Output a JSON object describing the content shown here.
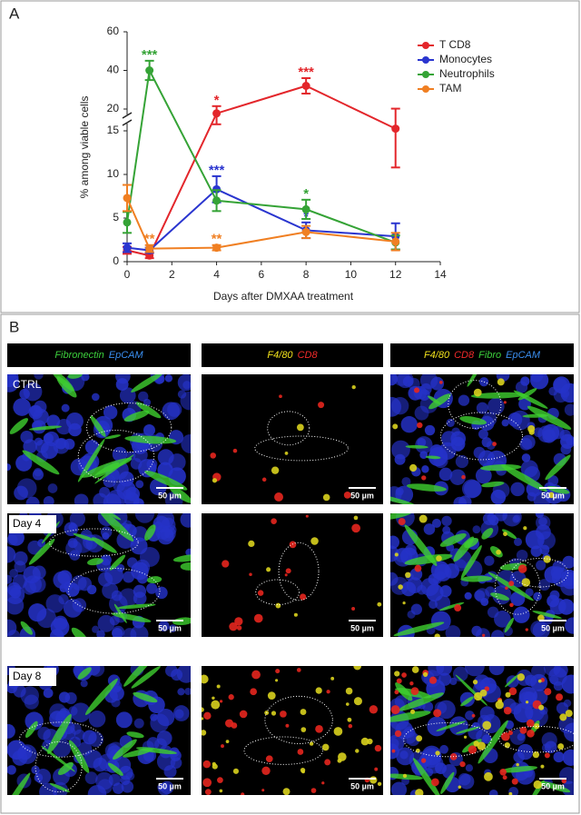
{
  "panel_labels": [
    "A",
    "B"
  ],
  "chart_data": {
    "type": "line",
    "x_label": "Days after DMXAA treatment",
    "y_label": "% among viable cells",
    "x": [
      0,
      1,
      4,
      8,
      12
    ],
    "xlim": [
      0,
      14
    ],
    "xticks": [
      0,
      2,
      4,
      6,
      8,
      10,
      12,
      14
    ],
    "ylim": [
      0,
      60
    ],
    "ybreak": [
      15,
      20
    ],
    "yticks": [
      0,
      5,
      10,
      15,
      20,
      40,
      60
    ],
    "legend": "top-right",
    "series": [
      {
        "name": "T CD8",
        "color": "#e3262b",
        "values": [
          1.3,
          0.7,
          19,
          32,
          15.5
        ],
        "errors": [
          0.4,
          0.3,
          2.5,
          4,
          4.7
        ],
        "stars": [
          null,
          null,
          "*",
          "***",
          null
        ]
      },
      {
        "name": "Monocytes",
        "color": "#2a35cf",
        "values": [
          1.6,
          1.3,
          8.3,
          3.6,
          2.9
        ],
        "errors": [
          0.5,
          0.3,
          1.5,
          0.9,
          1.5
        ],
        "stars": [
          null,
          null,
          "***",
          "*",
          null
        ]
      },
      {
        "name": "Neutrophils",
        "color": "#35a336",
        "values": [
          4.5,
          40,
          7,
          6,
          2.2
        ],
        "errors": [
          1.2,
          5,
          1.2,
          1.1,
          0.8
        ],
        "stars": [
          null,
          "***",
          null,
          "*",
          null
        ]
      },
      {
        "name": "TAM",
        "color": "#f07f22",
        "values": [
          7.3,
          1.5,
          1.6,
          3.4,
          2.3
        ],
        "errors": [
          1.5,
          0.4,
          0.3,
          0.7,
          1.0
        ],
        "stars": [
          null,
          "**",
          "**",
          null,
          null
        ]
      }
    ]
  },
  "panel_b": {
    "columns": [
      [
        {
          "text": "Fibronectin",
          "color": "#3ccf3c"
        },
        {
          "text": "EpCAM",
          "color": "#3a8ef0"
        }
      ],
      [
        {
          "text": "F4/80",
          "color": "#f2e21c"
        },
        {
          "text": "CD8",
          "color": "#f02a2a"
        }
      ],
      [
        {
          "text": "F4/80",
          "color": "#f2e21c"
        },
        {
          "text": "CD8",
          "color": "#f02a2a"
        },
        {
          "text": "Fibro",
          "color": "#3ccf3c"
        },
        {
          "text": "EpCAM",
          "color": "#3a8ef0"
        }
      ]
    ],
    "rows": [
      "CTRL",
      "Day 4",
      "Day 8"
    ],
    "scale_bar": "50 µm"
  }
}
